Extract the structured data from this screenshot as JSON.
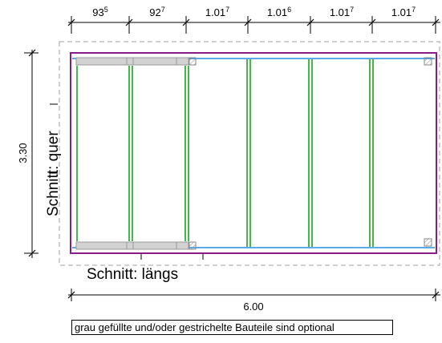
{
  "dimensions_top": [
    {
      "main": "93",
      "sup": "5"
    },
    {
      "main": "92",
      "sup": "7"
    },
    {
      "main": "1.01",
      "sup": "7"
    },
    {
      "main": "1.01",
      "sup": "6"
    },
    {
      "main": "1.01",
      "sup": "7"
    },
    {
      "main": "1.01",
      "sup": "7"
    }
  ],
  "dimension_left": "3.30",
  "dimension_bottom": "6.00",
  "section_quer": "Schnitt:  quer",
  "section_laengs": "Schnitt:  längs",
  "note": "grau gefüllte und/oder gestrichelte Bauteile sind optional",
  "colors": {
    "frame": "#8a1a8a",
    "beam": "#1e8fe0",
    "joist": "#17a51c",
    "optional_fill": "#d2d2d2",
    "dashed_outline": "#a0a0a0"
  }
}
